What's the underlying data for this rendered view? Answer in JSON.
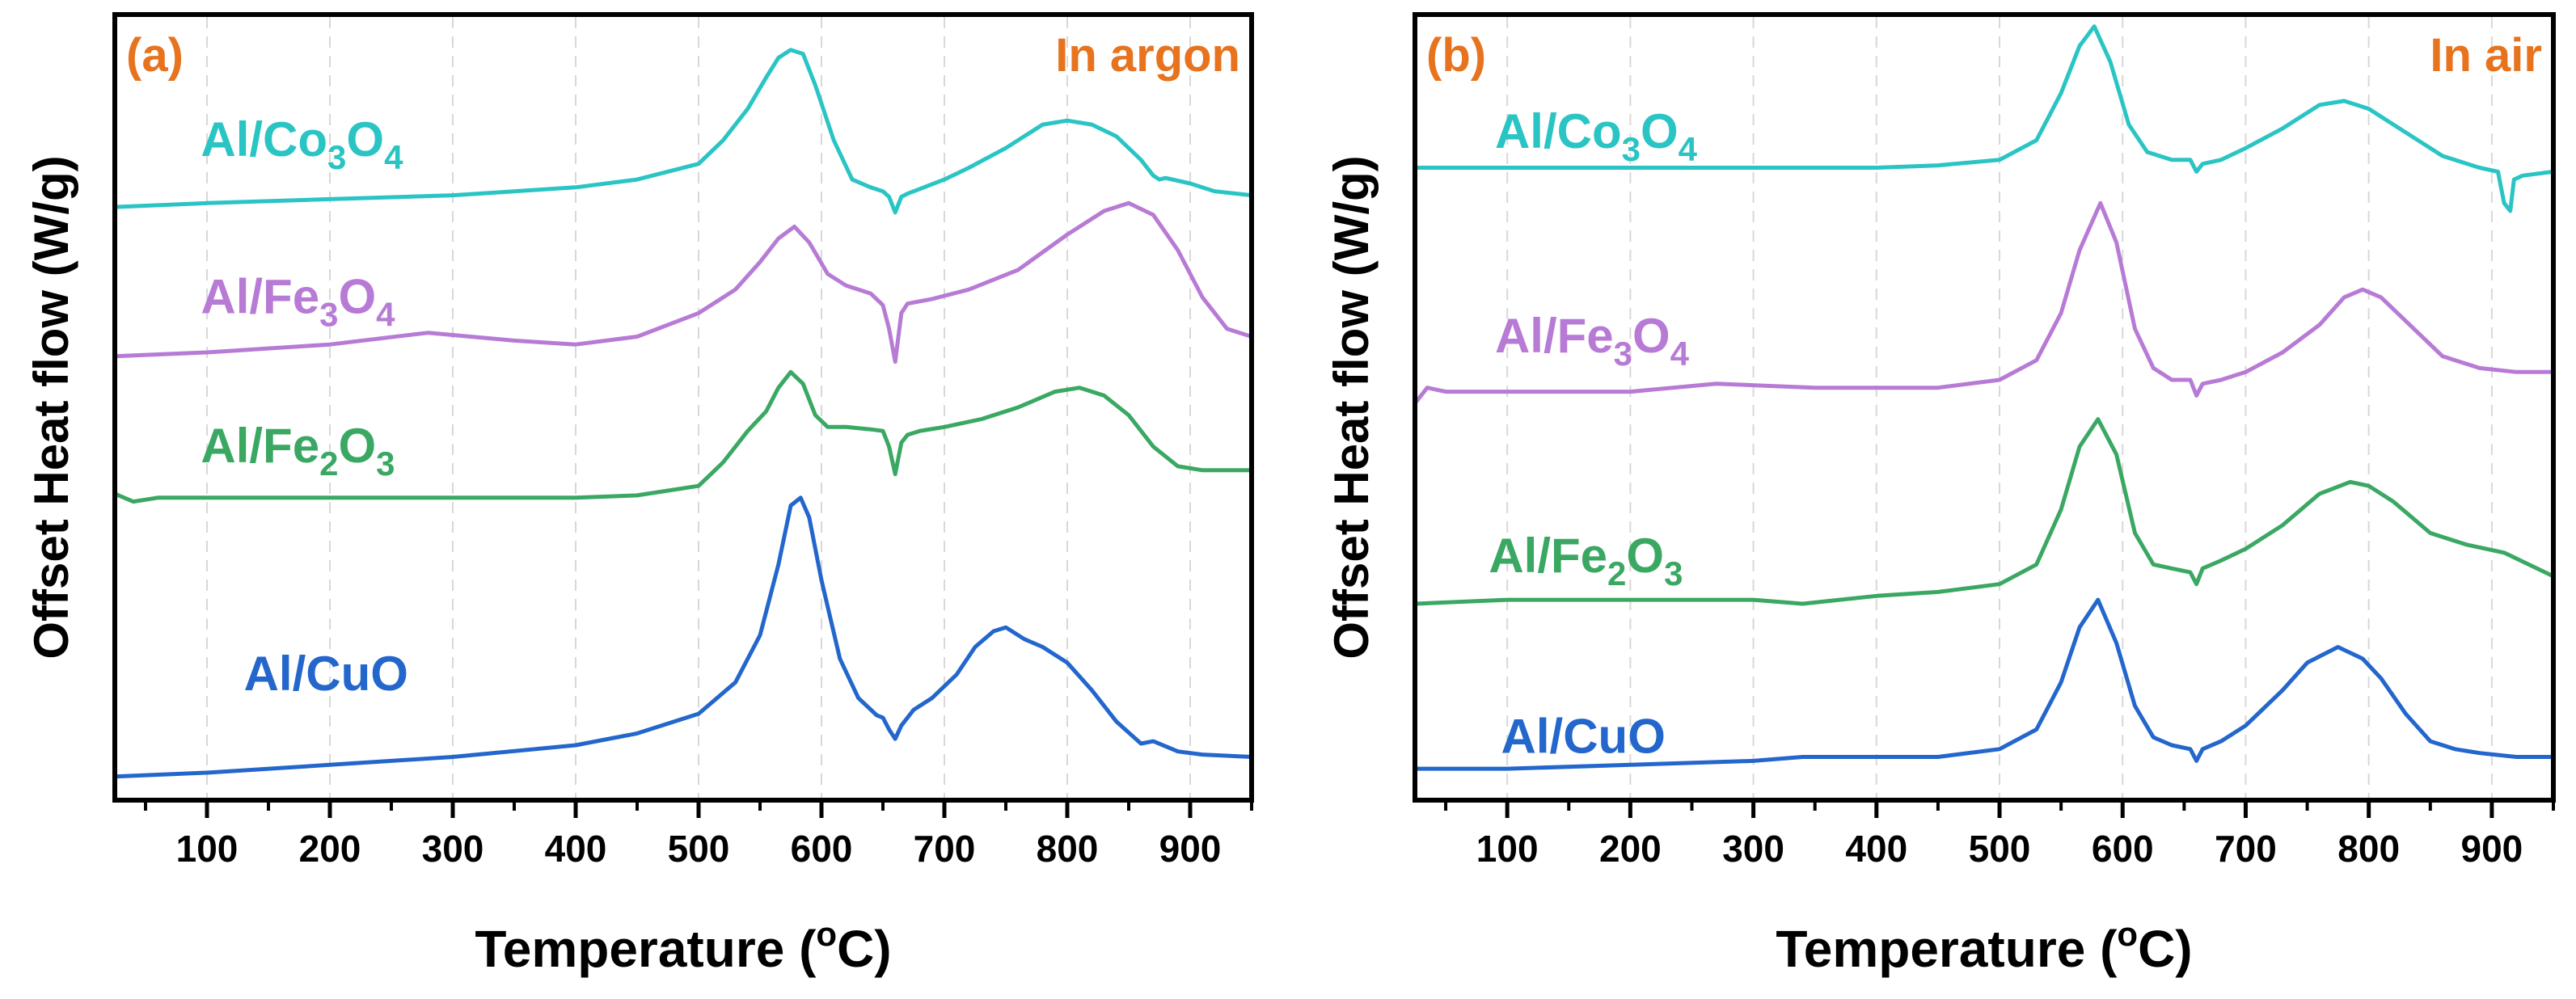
{
  "colors": {
    "co3o4": "#2bc4c4",
    "fe3o4": "#b77bd6",
    "fe2o3": "#3aa863",
    "cuo": "#2366cc",
    "accent": "#e8731e",
    "axis": "#000000",
    "grid": "#d8d8d8"
  },
  "chart_data": [
    {
      "type": "line",
      "panel_tag": "(a)",
      "condition": "In argon",
      "xlabel": "Temperature (oC)",
      "ylabel": "Offset Heat flow (W/g)",
      "xlim": [
        25,
        950
      ],
      "ylim": [
        0,
        100
      ],
      "xticks": [
        100,
        200,
        300,
        400,
        500,
        600,
        700,
        800,
        900
      ],
      "xtick_labels": [
        "100",
        "200",
        "300",
        "400",
        "500",
        "600",
        "700",
        "800",
        "900"
      ],
      "grid": true,
      "series": [
        {
          "key": "co3o4",
          "name": "Al/Co3O4",
          "label_base": "Al/Co",
          "sub1": "3",
          "mid": "O",
          "sub2": "4",
          "label_at": [
            95,
            82
          ],
          "x": [
            25,
            100,
            200,
            300,
            400,
            450,
            500,
            520,
            540,
            555,
            565,
            575,
            585,
            595,
            610,
            625,
            640,
            650,
            655,
            660,
            665,
            670,
            680,
            700,
            720,
            750,
            780,
            800,
            820,
            840,
            860,
            870,
            875,
            880,
            900,
            920,
            950
          ],
          "y": [
            75.5,
            76,
            76.5,
            77,
            78,
            79,
            81,
            84,
            88,
            92,
            94.5,
            95.5,
            95,
            91,
            84,
            79,
            78,
            77.5,
            76.8,
            74.8,
            76.8,
            77.2,
            77.8,
            79,
            80.5,
            83,
            86,
            86.5,
            86,
            84.5,
            81.5,
            79.5,
            79,
            79.2,
            78.5,
            77.5,
            77
          ]
        },
        {
          "key": "fe3o4",
          "name": "Al/Fe3O4",
          "label_base": "Al/Fe",
          "sub1": "3",
          "mid": "O",
          "sub2": "4",
          "label_at": [
            95,
            62
          ],
          "x": [
            25,
            100,
            200,
            280,
            350,
            400,
            450,
            500,
            530,
            550,
            565,
            578,
            590,
            605,
            620,
            640,
            650,
            655,
            660,
            665,
            670,
            690,
            720,
            760,
            800,
            830,
            850,
            870,
            890,
            910,
            930,
            950
          ],
          "y": [
            56.5,
            57,
            58,
            59.5,
            58.5,
            58,
            59,
            62,
            65,
            68.5,
            71.5,
            73,
            71,
            67,
            65.5,
            64.5,
            63,
            60,
            55.8,
            62,
            63.2,
            63.8,
            65,
            67.5,
            72,
            75,
            76,
            74.5,
            70,
            64,
            60,
            59
          ]
        },
        {
          "key": "fe2o3",
          "name": "Al/Fe2O3",
          "label_base": "Al/Fe",
          "sub1": "2",
          "mid": "O",
          "sub2": "3",
          "label_at": [
            95,
            43
          ],
          "x": [
            25,
            40,
            60,
            100,
            200,
            300,
            400,
            450,
            500,
            520,
            540,
            555,
            565,
            575,
            585,
            595,
            605,
            620,
            640,
            650,
            655,
            660,
            665,
            670,
            680,
            700,
            730,
            760,
            790,
            810,
            830,
            850,
            870,
            890,
            910,
            950
          ],
          "y": [
            39,
            38,
            38.5,
            38.5,
            38.5,
            38.5,
            38.5,
            38.8,
            40,
            43,
            47,
            49.5,
            52.5,
            54.5,
            53,
            49,
            47.5,
            47.5,
            47.2,
            47,
            45,
            41.5,
            45.5,
            46.5,
            47,
            47.5,
            48.5,
            50,
            52,
            52.5,
            51.5,
            49,
            45,
            42.5,
            42,
            42
          ]
        },
        {
          "key": "cuo",
          "name": "Al/CuO",
          "label_base": "Al/CuO",
          "sub1": "",
          "mid": "",
          "sub2": "",
          "label_at": [
            130,
            14
          ],
          "x": [
            25,
            100,
            200,
            300,
            400,
            450,
            500,
            530,
            550,
            565,
            575,
            583,
            590,
            600,
            615,
            630,
            645,
            650,
            655,
            660,
            665,
            675,
            690,
            710,
            725,
            740,
            750,
            765,
            780,
            800,
            820,
            840,
            860,
            870,
            890,
            910,
            950
          ],
          "y": [
            3,
            3.5,
            4.5,
            5.5,
            7,
            8.5,
            11,
            15,
            21,
            30,
            37.5,
            38.5,
            36,
            28,
            18,
            13,
            10.8,
            10.5,
            9,
            7.8,
            9.5,
            11.5,
            13,
            16,
            19.5,
            21.5,
            22,
            20.5,
            19.5,
            17.5,
            14,
            10,
            7.2,
            7.5,
            6.2,
            5.8,
            5.5
          ]
        }
      ]
    },
    {
      "type": "line",
      "panel_tag": "(b)",
      "condition": "In air",
      "xlabel": "Temperature (oC)",
      "ylabel": "Offset Heat flow (W/g)",
      "xlim": [
        25,
        950
      ],
      "ylim": [
        0,
        100
      ],
      "xticks": [
        100,
        200,
        300,
        400,
        500,
        600,
        700,
        800,
        900
      ],
      "xtick_labels": [
        "100",
        "200",
        "300",
        "400",
        "500",
        "600",
        "700",
        "800",
        "900"
      ],
      "grid": true,
      "series": [
        {
          "key": "co3o4",
          "name": "Al/Co3O4",
          "label_base": "Al/Co",
          "sub1": "3",
          "mid": "O",
          "sub2": "4",
          "label_at": [
            90,
            83
          ],
          "x": [
            25,
            100,
            200,
            300,
            400,
            450,
            500,
            530,
            550,
            565,
            577,
            590,
            605,
            620,
            640,
            655,
            660,
            665,
            680,
            700,
            730,
            760,
            780,
            800,
            830,
            860,
            890,
            905,
            910,
            915,
            918,
            925,
            950
          ],
          "y": [
            80.5,
            80.5,
            80.5,
            80.5,
            80.5,
            80.8,
            81.5,
            84,
            90,
            96,
            98.5,
            94,
            86,
            82.5,
            81.5,
            81.5,
            80,
            81,
            81.5,
            83,
            85.5,
            88.5,
            89,
            88,
            85,
            82,
            80.5,
            80,
            76,
            75,
            79,
            79.5,
            80
          ]
        },
        {
          "key": "fe3o4",
          "name": "Al/Fe3O4",
          "label_base": "Al/Fe",
          "sub1": "3",
          "mid": "O",
          "sub2": "4",
          "label_at": [
            90,
            57
          ],
          "x": [
            25,
            35,
            50,
            100,
            200,
            270,
            350,
            450,
            500,
            530,
            550,
            565,
            582,
            595,
            610,
            625,
            640,
            655,
            660,
            665,
            680,
            700,
            730,
            760,
            780,
            795,
            810,
            830,
            860,
            890,
            920,
            950
          ],
          "y": [
            50.5,
            52.5,
            52,
            52,
            52,
            53,
            52.5,
            52.5,
            53.5,
            56,
            62,
            70,
            76,
            71,
            60,
            55,
            53.5,
            53.5,
            51.5,
            53,
            53.5,
            54.5,
            57,
            60.5,
            64,
            65,
            64,
            61,
            56.5,
            55,
            54.5,
            54.5
          ]
        },
        {
          "key": "fe2o3",
          "name": "Al/Fe2O3",
          "label_base": "Al/Fe",
          "sub1": "2",
          "mid": "O",
          "sub2": "3",
          "label_at": [
            85,
            29
          ],
          "x": [
            25,
            100,
            200,
            300,
            340,
            400,
            450,
            500,
            530,
            550,
            565,
            580,
            595,
            610,
            625,
            640,
            655,
            660,
            665,
            680,
            700,
            730,
            760,
            785,
            800,
            820,
            850,
            880,
            910,
            950
          ],
          "y": [
            25,
            25.5,
            25.5,
            25.5,
            25,
            26,
            26.5,
            27.5,
            30,
            37,
            45,
            48.5,
            44,
            34,
            30,
            29.5,
            29,
            27.5,
            29.5,
            30.5,
            32,
            35,
            39,
            40.5,
            40,
            38,
            34,
            32.5,
            31.5,
            28.5
          ]
        },
        {
          "key": "cuo",
          "name": "Al/CuO",
          "label_base": "Al/CuO",
          "sub1": "",
          "mid": "",
          "sub2": "",
          "label_at": [
            95,
            6
          ],
          "x": [
            25,
            100,
            200,
            300,
            340,
            400,
            450,
            500,
            530,
            550,
            565,
            580,
            595,
            610,
            625,
            640,
            655,
            660,
            665,
            680,
            700,
            730,
            750,
            775,
            795,
            810,
            830,
            850,
            870,
            890,
            920,
            950
          ],
          "y": [
            4,
            4,
            4.5,
            5,
            5.5,
            5.5,
            5.5,
            6.5,
            9,
            15,
            22,
            25.5,
            20,
            12,
            8,
            7,
            6.5,
            5,
            6.5,
            7.5,
            9.5,
            14,
            17.5,
            19.5,
            18,
            15.5,
            11,
            7.5,
            6.5,
            6,
            5.5,
            5.5
          ]
        }
      ]
    }
  ]
}
